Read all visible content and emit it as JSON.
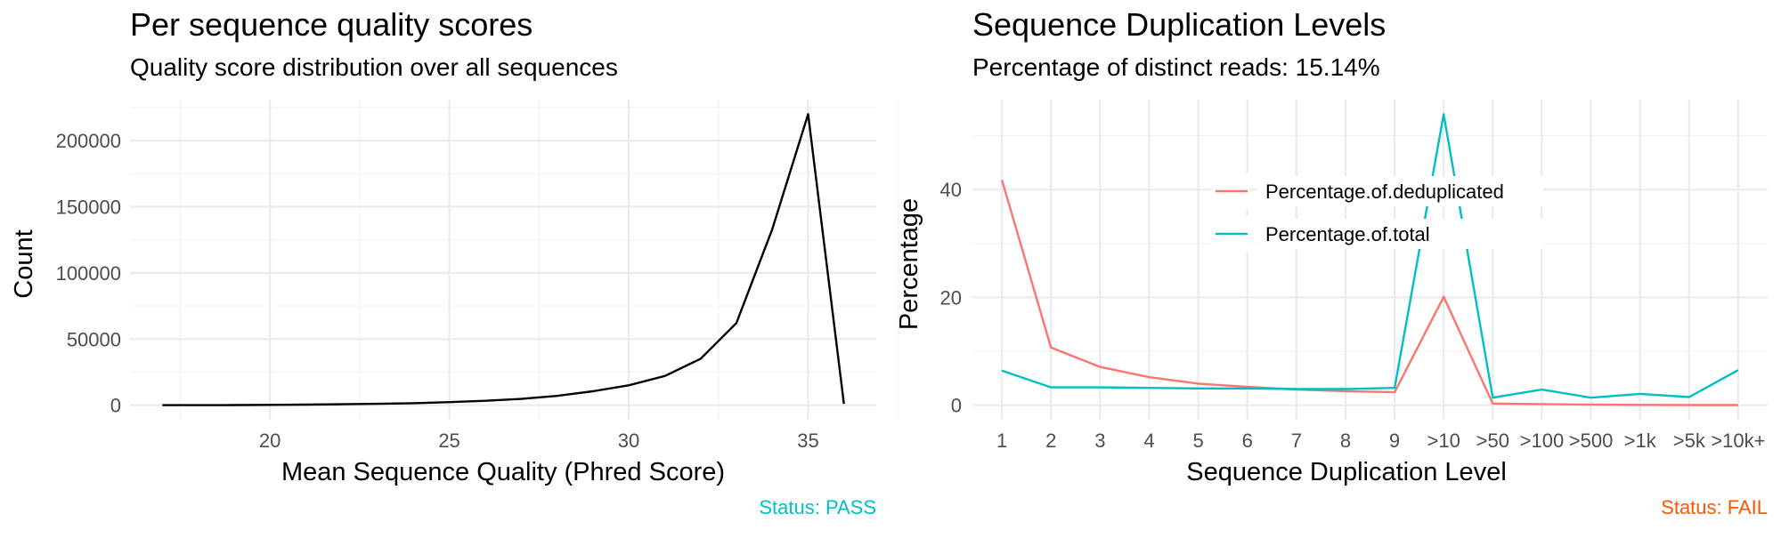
{
  "chart_data": [
    {
      "type": "line",
      "title": "Per sequence quality scores",
      "subtitle": "Quality score distribution over all sequences",
      "xlabel": "Mean Sequence Quality (Phred Score)",
      "ylabel": "Count",
      "xlim": [
        16.1,
        36.9
      ],
      "ylim": [
        -11000,
        231000
      ],
      "x_ticks": [
        20,
        25,
        30,
        35
      ],
      "x_tick_labels": [
        "20",
        "25",
        "30",
        "35"
      ],
      "y_ticks": [
        0,
        50000,
        100000,
        150000,
        200000
      ],
      "y_tick_labels": [
        "0",
        "50000",
        "100000",
        "150000",
        "200000"
      ],
      "grid": true,
      "series": [
        {
          "color": "#000000",
          "x": [
            17,
            18,
            19,
            20,
            21,
            22,
            23,
            24,
            25,
            26,
            27,
            28,
            29,
            30,
            31,
            32,
            33,
            34,
            35,
            36
          ],
          "y": [
            0,
            50,
            100,
            200,
            400,
            700,
            1000,
            1500,
            2300,
            3300,
            4700,
            7000,
            10500,
            15000,
            22000,
            35000,
            62000,
            133000,
            220000,
            1000
          ]
        }
      ],
      "caption": "Status: PASS",
      "caption_color": "#00BFC4"
    },
    {
      "type": "line",
      "title": "Sequence Duplication Levels",
      "subtitle": "Percentage of distinct reads: 15.14%",
      "xlabel": "Sequence Duplication Level",
      "ylabel": "Percentage",
      "categories": [
        "1",
        "2",
        "3",
        "4",
        "5",
        "6",
        "7",
        "8",
        "9",
        ">10",
        ">50",
        ">100",
        ">500",
        ">1k",
        ">5k",
        ">10k+"
      ],
      "ylim": [
        -2.7,
        56.7
      ],
      "y_ticks": [
        0,
        20,
        40
      ],
      "y_tick_labels": [
        "0",
        "20",
        "40"
      ],
      "grid": true,
      "legend_position": "inside-top-center",
      "series": [
        {
          "name": "Percentage.of.deduplicated",
          "color": "#F8766D",
          "values": [
            41.8,
            10.7,
            7.1,
            5.2,
            4.0,
            3.4,
            2.9,
            2.6,
            2.4,
            20.1,
            0.3,
            0.2,
            0.1,
            0.05,
            0.02,
            0.02
          ]
        },
        {
          "name": "Percentage.of.total",
          "color": "#00BFC4",
          "values": [
            6.4,
            3.3,
            3.3,
            3.2,
            3.1,
            3.1,
            3.0,
            3.0,
            3.2,
            54.0,
            1.4,
            2.9,
            1.4,
            2.1,
            1.5,
            6.5
          ]
        }
      ],
      "caption": "Status: FAIL",
      "caption_color": "#FF5500"
    }
  ]
}
